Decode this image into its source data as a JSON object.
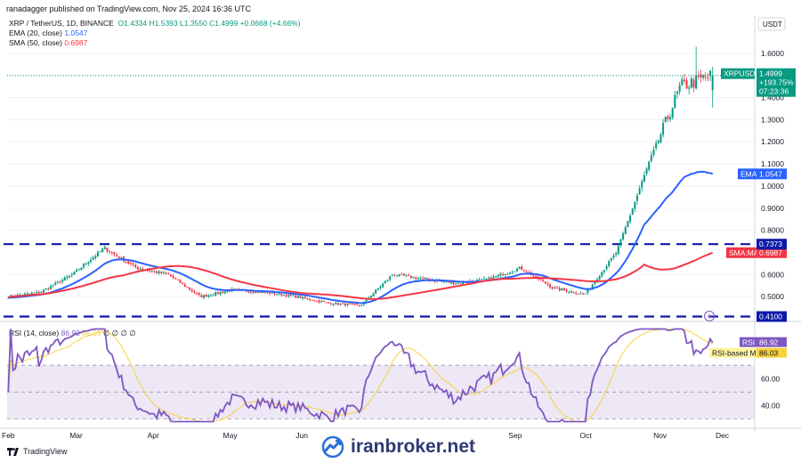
{
  "header": {
    "publisher": "ranadagger published on TradingView.com, Nov 25, 2024 16:36 UTC"
  },
  "legend": {
    "symbol": "XRP / TetherUS, 1D, BINANCE",
    "ohlc_text": "O1.4334  H1.5393  L1.3550  C1.4999  +0.0668 (+4.66%)",
    "ema_label": "EMA (20, close)",
    "ema_value": "1.0547",
    "sma_label": "SMA (50, close)",
    "sma_value": "0.6987"
  },
  "rsi_legend": {
    "label": "RSI (14, close)",
    "rsi": "86.92",
    "rsi_ma": "86.03",
    "tail": "∅ ∅ ∅ ∅"
  },
  "price_axis": {
    "currency": "USDT",
    "ticks": [
      "1.6000",
      "1.5000",
      "1.4000",
      "1.3000",
      "1.2000",
      "1.1000",
      "1.0000",
      "0.9000",
      "0.8000",
      "0.6000",
      "0.5000"
    ],
    "last_label": {
      "symbol": "XRPUSDT",
      "price": "1.4999",
      "change": "+193.75%",
      "countdown": "07:23:36"
    },
    "ema_tag": {
      "name": "EMA",
      "value": "1.0547"
    },
    "sma_tag": {
      "name": "SMA:MA",
      "value": "0.6987"
    },
    "level_tags": [
      "0.7373",
      "0.4100"
    ]
  },
  "rsi_axis": {
    "ticks": [
      "60.00",
      "40.00"
    ],
    "tags": [
      {
        "name": "RSI",
        "value": "86.92"
      },
      {
        "name": "RSI-based MA",
        "value": "86.03"
      }
    ]
  },
  "time_axis": {
    "labels": [
      "Feb",
      "Mar",
      "Apr",
      "May",
      "Jun",
      "Sep",
      "Oct",
      "Nov",
      "Dec"
    ]
  },
  "branding": {
    "tradingview": "TradingView",
    "watermark": "iranbroker.net"
  },
  "colors": {
    "up": "#089981",
    "down": "#f23645",
    "ema": "#2962ff",
    "sma": "#f23645",
    "level": "#0d1aa8",
    "rsi": "#7e57c2",
    "rsi_ma": "#f7d33b",
    "rsi_band": "#ede7f6"
  },
  "chart_data": [
    {
      "type": "candlestick",
      "title": "XRP / TetherUS, 1D, BINANCE",
      "ylim": [
        0.4,
        1.72
      ],
      "x_labels": [
        "Feb",
        "Mar",
        "Apr",
        "May",
        "Jun",
        "Sep",
        "Oct",
        "Nov",
        "Dec"
      ],
      "close_path": [
        [
          "Feb",
          0.5
        ],
        [
          "Feb mid",
          0.52
        ],
        [
          "Mar",
          0.6
        ],
        [
          "Mar mid",
          0.72
        ],
        [
          "Mar late",
          0.63
        ],
        [
          "Apr",
          0.6
        ],
        [
          "Apr mid",
          0.5
        ],
        [
          "May",
          0.53
        ],
        [
          "May mid",
          0.52
        ],
        [
          "Jun",
          0.5
        ],
        [
          "Jul",
          0.47
        ],
        [
          "Jul late",
          0.46
        ],
        [
          "Aug",
          0.6
        ],
        [
          "Aug mid",
          0.58
        ],
        [
          "Sep",
          0.56
        ],
        [
          "Sep mid",
          0.58
        ],
        [
          "Oct",
          0.63
        ],
        [
          "Oct mid",
          0.54
        ],
        [
          "Nov",
          0.51
        ],
        [
          "Nov mid",
          0.7
        ],
        [
          "Nov late",
          1.1
        ],
        [
          "Nov 22",
          1.45
        ],
        [
          "Nov 25",
          1.4999
        ]
      ],
      "last": {
        "open": 1.4334,
        "high": 1.5393,
        "low": 1.355,
        "close": 1.4999,
        "change": 0.0668,
        "change_pct": 4.66
      },
      "series": [
        {
          "name": "EMA (20, close)",
          "last": 1.0547
        },
        {
          "name": "SMA (50, close)",
          "last": 0.6987
        }
      ],
      "horizontal_levels": [
        0.7373,
        0.41
      ]
    },
    {
      "type": "line",
      "title": "RSI (14, close)",
      "ylim": [
        25,
        100
      ],
      "bands": [
        30,
        70
      ],
      "series": [
        {
          "name": "RSI",
          "last": 86.92
        },
        {
          "name": "RSI-based MA",
          "last": 86.03
        }
      ]
    }
  ]
}
